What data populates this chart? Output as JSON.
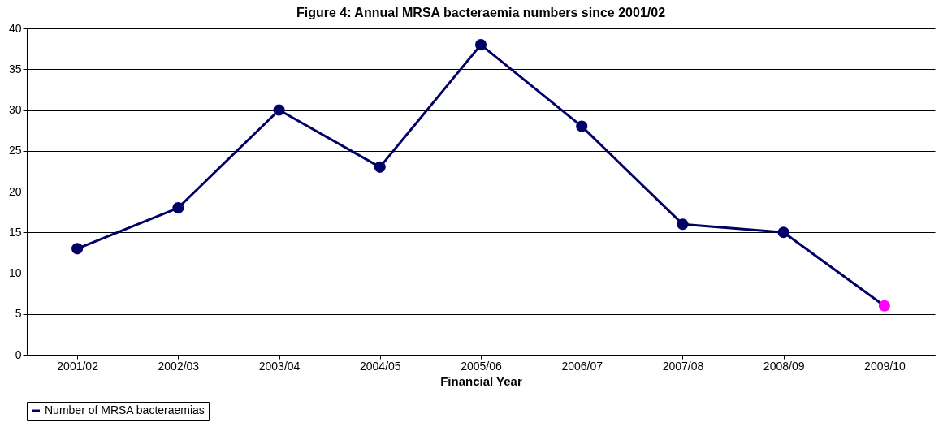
{
  "chart_data": {
    "type": "line",
    "title": "Figure 4: Annual MRSA bacteraemia numbers since 2001/02",
    "xlabel": "Financial Year",
    "categories": [
      "2001/02",
      "2002/03",
      "2003/04",
      "2004/05",
      "2005/06",
      "2006/07",
      "2007/08",
      "2008/09",
      "2009/10"
    ],
    "series": [
      {
        "name": "Number of MRSA bacteraemias",
        "color": "#000066",
        "colors": [
          "#000066",
          "#000066",
          "#000066",
          "#000066",
          "#000066",
          "#000066",
          "#000066",
          "#000066",
          "#ff00ff"
        ],
        "values": [
          13,
          18,
          30,
          23,
          38,
          28,
          16,
          15,
          6
        ]
      }
    ],
    "ylim": [
      0,
      40
    ],
    "yticks": [
      0,
      5,
      10,
      15,
      20,
      25,
      30,
      35,
      40
    ],
    "grid": "y",
    "legend": "bottom",
    "marker": "circle",
    "line_style": "solid"
  }
}
